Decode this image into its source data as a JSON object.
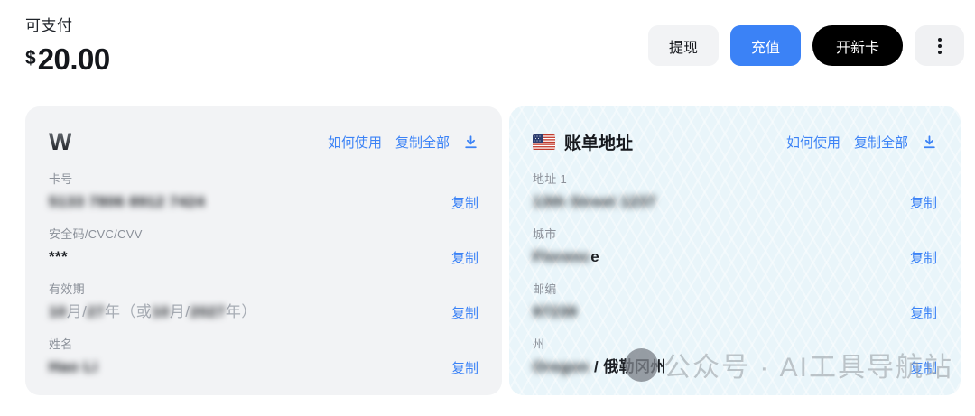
{
  "header": {
    "balance_label": "可支付",
    "currency_symbol": "$",
    "balance_amount": "20.00",
    "actions": {
      "withdraw": "提现",
      "topup": "充值",
      "new_card": "开新卡",
      "more_icon": "vertical-dots"
    }
  },
  "card_panel": {
    "logo_letter": "W",
    "links": {
      "how_to_use": "如何使用",
      "copy_all": "复制全部",
      "download_icon": "download"
    },
    "copy_label": "复制",
    "fields": [
      {
        "label": "卡号",
        "parts": [
          {
            "text": "5133 7806 8912 7424",
            "blur": true
          }
        ]
      },
      {
        "label": "安全码/CVC/CVV",
        "parts": [
          {
            "text": "***",
            "blur": false
          }
        ]
      },
      {
        "label": "有效期",
        "parts": [
          {
            "text": "10",
            "blur": true
          },
          {
            "text": "月/",
            "blur": false,
            "muted": true
          },
          {
            "text": "27",
            "blur": true
          },
          {
            "text": "年（或",
            "blur": false,
            "muted": true
          },
          {
            "text": "10",
            "blur": true
          },
          {
            "text": "月/",
            "blur": false,
            "muted": true
          },
          {
            "text": "2027",
            "blur": true
          },
          {
            "text": "年）",
            "blur": false,
            "muted": true
          }
        ]
      },
      {
        "label": "姓名",
        "parts": [
          {
            "text": "Hao Li",
            "blur": true
          }
        ]
      }
    ]
  },
  "address_panel": {
    "flag_icon": "us-flag",
    "title": "账单地址",
    "links": {
      "how_to_use": "如何使用",
      "copy_all": "复制全部",
      "download_icon": "download"
    },
    "copy_label": "复制",
    "fields": [
      {
        "label": "地址 1",
        "parts": [
          {
            "text": "13th Street 1237",
            "blur": true
          }
        ]
      },
      {
        "label": "城市",
        "parts": [
          {
            "text": "Florenc",
            "blur": true
          },
          {
            "text": "e",
            "blur": false
          }
        ]
      },
      {
        "label": "邮编",
        "parts": [
          {
            "text": "97239",
            "blur": true
          }
        ]
      },
      {
        "label": "州",
        "parts": [
          {
            "text": "Oregon",
            "blur": true
          },
          {
            "text": " / 俄勒冈州",
            "blur": false
          }
        ]
      }
    ]
  },
  "watermark": {
    "text": "公众号 · AI工具导航站"
  },
  "colors": {
    "accent_blue": "#3b82f6",
    "panel_gray": "#f2f3f5",
    "panel_blue": "#e9f5fa",
    "button_black": "#000000",
    "label_gray": "#8b9099",
    "value_dark": "#1d2025"
  }
}
